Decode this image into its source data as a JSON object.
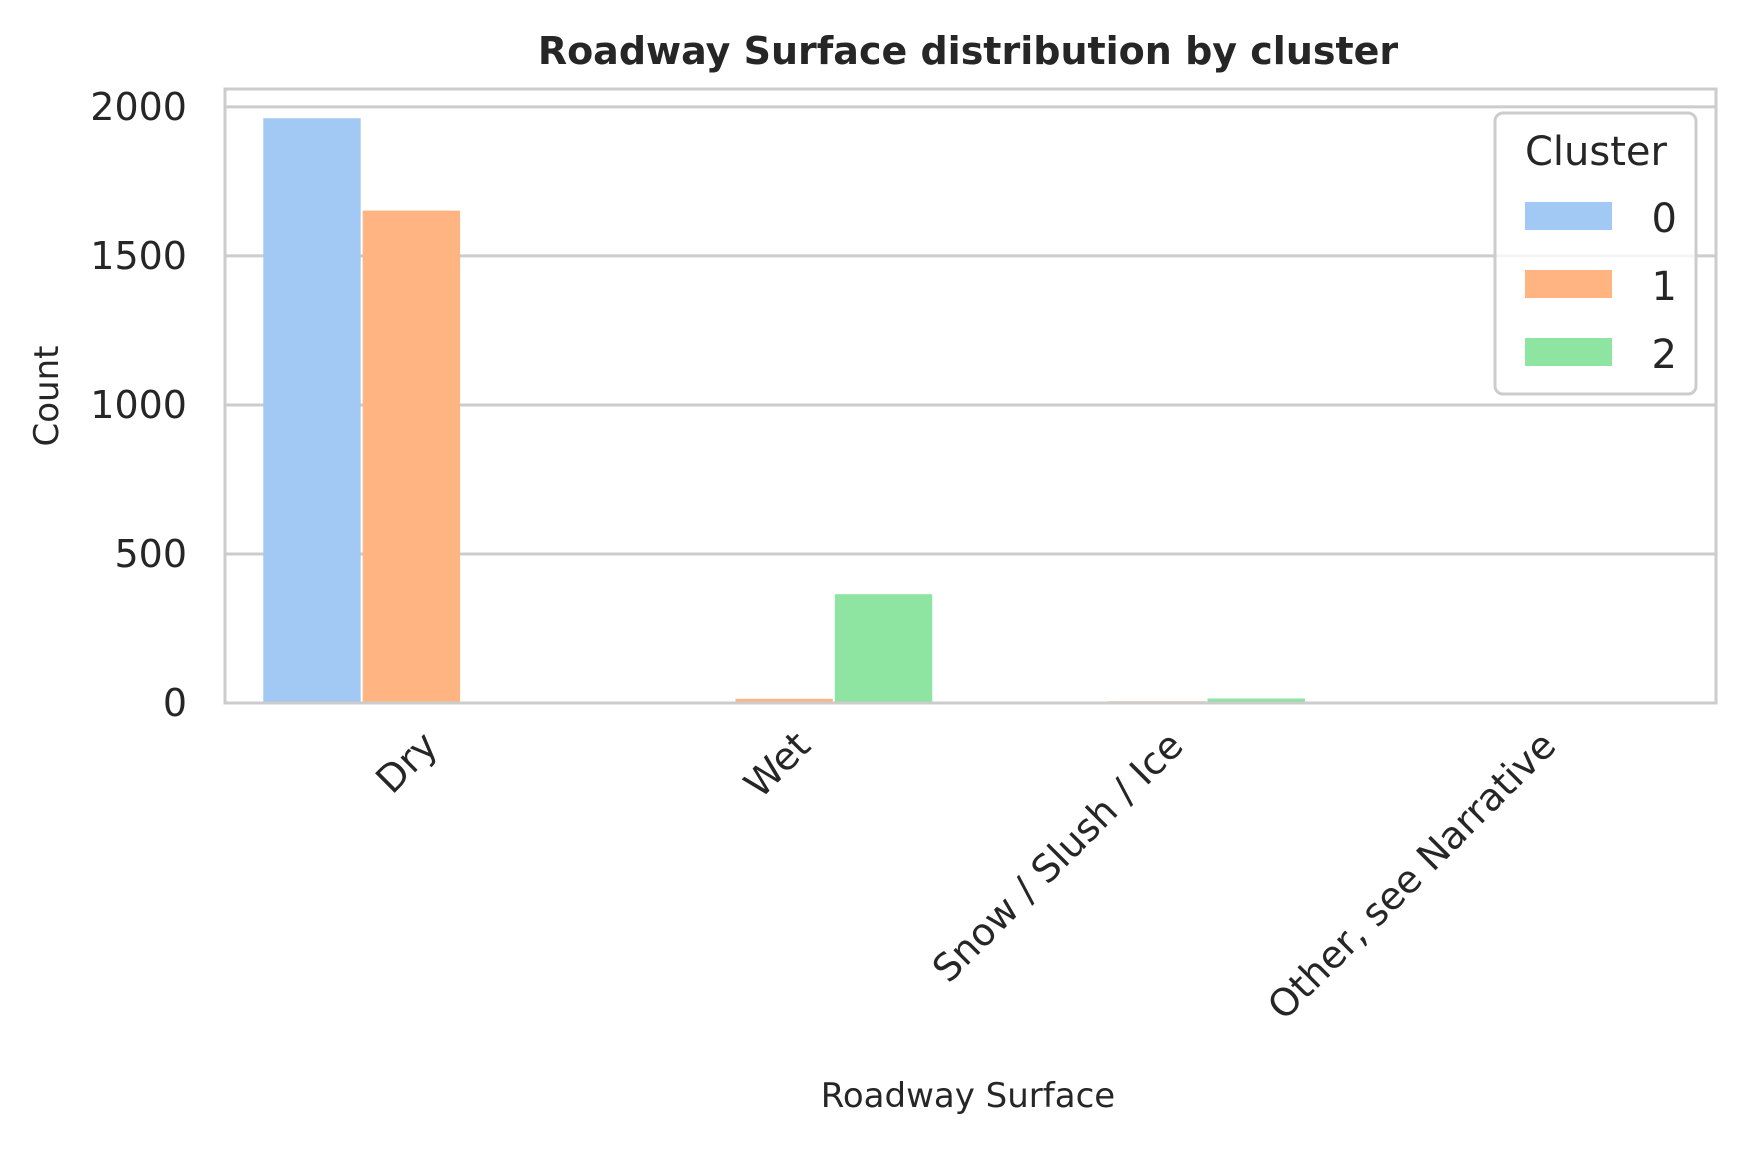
{
  "chart_data": {
    "type": "bar",
    "title": "Roadway Surface distribution by cluster",
    "xlabel": "Roadway Surface",
    "ylabel": "Count",
    "categories": [
      "Dry",
      "Wet",
      "Snow / Slush / Ice",
      "Other, see Narrative"
    ],
    "series": [
      {
        "name": "0",
        "values": [
          1962,
          2,
          3,
          1
        ]
      },
      {
        "name": "1",
        "values": [
          1652,
          14,
          6,
          2
        ]
      },
      {
        "name": "2",
        "values": [
          4,
          365,
          15,
          3
        ]
      }
    ],
    "ylim": [
      0,
      2060
    ],
    "yticks": [
      0,
      500,
      1000,
      1500,
      2000
    ],
    "grid": "horizontal",
    "legend": {
      "title": "Cluster",
      "placement": "top-right"
    },
    "colors": [
      "#a1c9f4",
      "#ffb482",
      "#8de5a1"
    ],
    "x_tick_rotation": -45
  }
}
